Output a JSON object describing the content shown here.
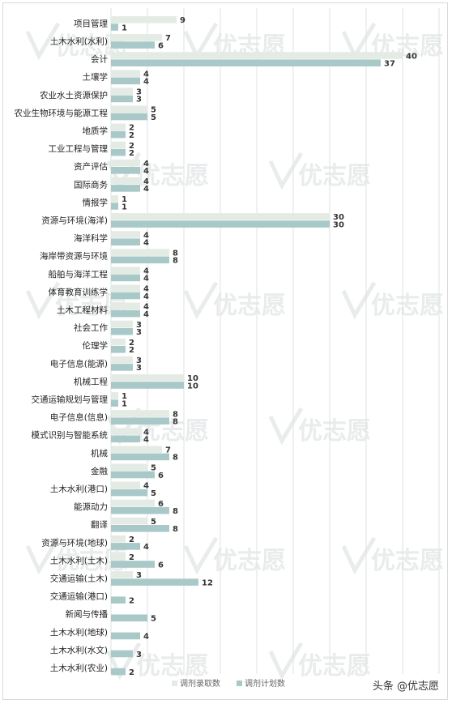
{
  "chart_data": {
    "type": "bar",
    "orientation": "horizontal",
    "categories": [
      "项目管理",
      "土木水利(水利)",
      "会计",
      "土壤学",
      "农业水土资源保护",
      "农业生物环境与能源工程",
      "地质学",
      "工业工程与管理",
      "资产评估",
      "国际商务",
      "情报学",
      "资源与环境(海洋)",
      "海洋科学",
      "海岸带资源与环境",
      "船舶与海洋工程",
      "体育教育训练学",
      "土木工程材料",
      "社会工作",
      "伦理学",
      "电子信息(能源)",
      "机械工程",
      "交通运输规划与管理",
      "电子信息(信息)",
      "模式识别与智能系统",
      "机械",
      "金融",
      "土木水利(港口)",
      "能源动力",
      "翻译",
      "资源与环境(地球)",
      "土木水利(土木)",
      "交通运输(土木)",
      "交通运输(港口)",
      "新闻与传播",
      "土木水利(地球)",
      "土木水利(水文)",
      "土木水利(农业)"
    ],
    "series": [
      {
        "name": "调剂录取数",
        "color": "#e4ebe4",
        "values": [
          9,
          7,
          40,
          4,
          3,
          5,
          2,
          2,
          4,
          4,
          1,
          30,
          4,
          8,
          4,
          4,
          4,
          3,
          2,
          3,
          10,
          1,
          8,
          4,
          7,
          5,
          4,
          6,
          5,
          2,
          2,
          3,
          null,
          null,
          null,
          null,
          null
        ]
      },
      {
        "name": "调剂计划数",
        "color": "#a9c9c9",
        "values": [
          1,
          6,
          37,
          4,
          3,
          5,
          2,
          2,
          4,
          4,
          1,
          30,
          4,
          8,
          4,
          4,
          4,
          3,
          2,
          3,
          10,
          1,
          8,
          4,
          8,
          6,
          5,
          8,
          8,
          4,
          6,
          12,
          2,
          5,
          4,
          3,
          2
        ]
      }
    ],
    "xlim": [
      0,
      45
    ],
    "grid": true,
    "legend": "bottom"
  },
  "watermark": "优志愿",
  "credit": "头条 @优志愿"
}
